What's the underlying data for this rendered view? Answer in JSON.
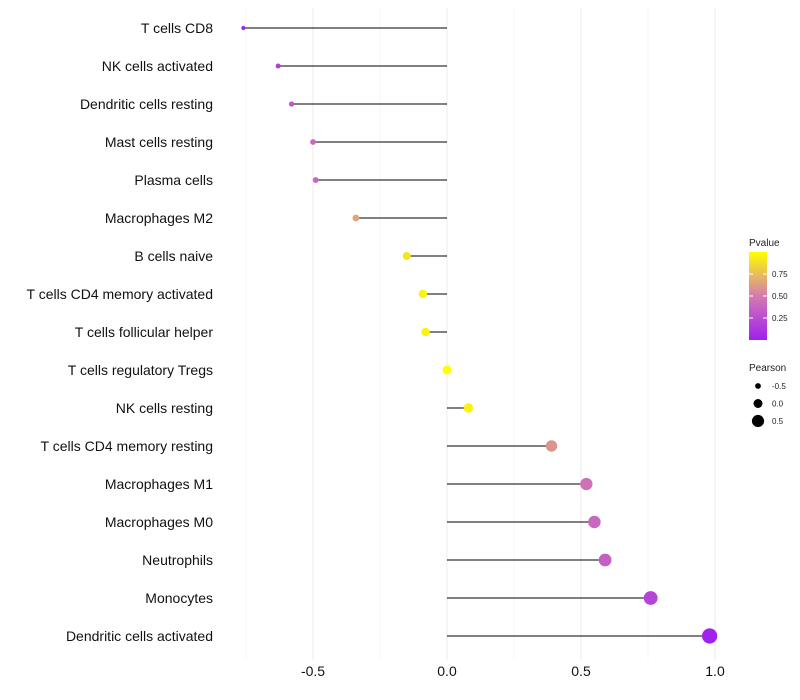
{
  "chart_data": {
    "type": "lollipop",
    "title": "",
    "xlabel": "",
    "ylabel": "",
    "xlim": [
      -0.78,
      1.0
    ],
    "xticks": [
      -0.5,
      0.0,
      0.5,
      1.0
    ],
    "xtick_labels": [
      "-0.5",
      "0.0",
      "0.5",
      "1.0"
    ],
    "grid": true,
    "categories": [
      "T cells CD8",
      "NK cells activated",
      "Dendritic cells resting",
      "Mast cells resting",
      "Plasma cells",
      "Macrophages M2",
      "B cells naive",
      "T cells CD4 memory activated",
      "T cells follicular helper",
      "T cells regulatory  Tregs ",
      "NK cells resting",
      "T cells CD4 memory resting",
      "Macrophages M1",
      "Macrophages M0",
      "Neutrophils",
      "Monocytes",
      "Dendritic cells activated"
    ],
    "pearson": [
      -0.76,
      -0.63,
      -0.58,
      -0.5,
      -0.49,
      -0.34,
      -0.15,
      -0.09,
      -0.08,
      0.0,
      0.08,
      0.39,
      0.52,
      0.55,
      0.59,
      0.76,
      0.98
    ],
    "pvalue": [
      0.01,
      0.15,
      0.3,
      0.4,
      0.4,
      0.65,
      0.9,
      0.95,
      0.95,
      1.0,
      0.95,
      0.6,
      0.45,
      0.4,
      0.35,
      0.2,
      0.01
    ],
    "legend": {
      "color": {
        "title": "Pvalue",
        "ticks": [
          0.75,
          0.5,
          0.25
        ],
        "tick_labels": [
          "0.75",
          "0.50",
          "0.25"
        ],
        "low_color": "#a020f0",
        "high_color": "#ffff00",
        "mid_color": "#d37bb0"
      },
      "size": {
        "title": "Pearson",
        "values": [
          -0.5,
          0.0,
          0.5
        ],
        "labels": [
          "-0.5",
          "0.0",
          "0.5"
        ]
      },
      "placement": "right"
    }
  }
}
